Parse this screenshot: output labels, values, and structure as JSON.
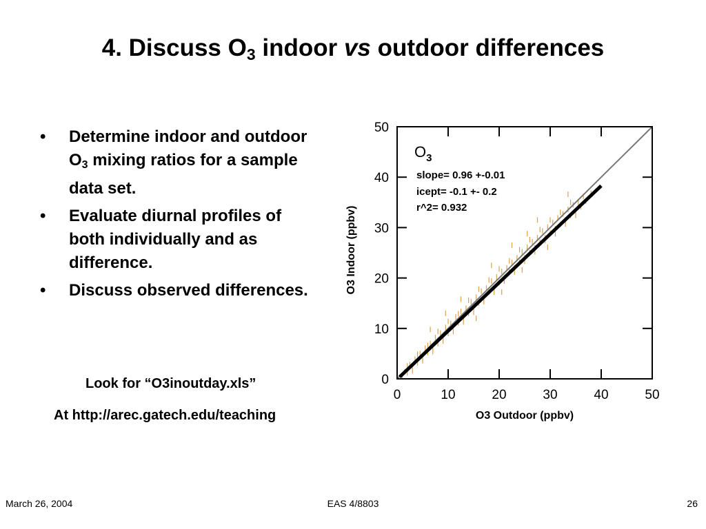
{
  "slide": {
    "title": {
      "pre": "4. Discuss O",
      "sub": "3",
      "mid": " indoor ",
      "em": "vs",
      "post": " outdoor differences"
    },
    "bullet_char": "•",
    "bullets": [
      {
        "pre": "Determine indoor and outdoor O",
        "sub": "3",
        "post": " mixing ratios for a sample data set."
      },
      {
        "pre": "Evaluate diurnal profiles of both individually and as difference.",
        "sub": "",
        "post": ""
      },
      {
        "pre": "Discuss observed differences.",
        "sub": "",
        "post": ""
      }
    ],
    "note_file": "Look for “O3inoutday.xls”",
    "note_url": "At http://arec.gatech.edu/teaching"
  },
  "footer": {
    "date": "March 26, 2004",
    "course": "EAS 4/8803",
    "page": "26"
  },
  "chart_data": {
    "type": "scatter",
    "xlabel": "O3 Outdoor (ppbv)",
    "ylabel": "O3 Indoor (ppbv)",
    "xlim": [
      0,
      50
    ],
    "ylim": [
      0,
      50
    ],
    "xticks": [
      0,
      10,
      20,
      30,
      40,
      50
    ],
    "yticks": [
      0,
      10,
      20,
      30,
      40,
      50
    ],
    "grid": false,
    "annotation": {
      "species": "O",
      "species_sub": "3",
      "slope": "slope= 0.96 +-0.01",
      "icept": "icept=  -0.1 +-  0.2",
      "r2": "r^2=  0.932"
    },
    "fit_line": {
      "slope": 0.96,
      "intercept": -0.1,
      "x_range": [
        0.5,
        40
      ]
    },
    "one_to_one_line": {
      "x_range": [
        0,
        50
      ]
    },
    "point_color": "#d8a050",
    "points": [
      [
        1,
        0.5
      ],
      [
        1.5,
        1.4
      ],
      [
        2,
        1.2
      ],
      [
        2.5,
        2.8
      ],
      [
        3,
        2.4
      ],
      [
        3.5,
        3.9
      ],
      [
        4,
        3.2
      ],
      [
        4.5,
        5.0
      ],
      [
        5,
        4.2
      ],
      [
        5.5,
        6.1
      ],
      [
        6,
        5.2
      ],
      [
        6.5,
        7.0
      ],
      [
        7,
        6.3
      ],
      [
        7.5,
        8.2
      ],
      [
        8,
        7.0
      ],
      [
        8.5,
        9.1
      ],
      [
        9,
        8.1
      ],
      [
        9.5,
        10.2
      ],
      [
        10,
        9.0
      ],
      [
        10.5,
        11.0
      ],
      [
        11,
        10.2
      ],
      [
        11.5,
        12.3
      ],
      [
        12,
        11.1
      ],
      [
        12.5,
        13.4
      ],
      [
        13,
        12.2
      ],
      [
        13.5,
        14.0
      ],
      [
        14,
        13.0
      ],
      [
        14.5,
        15.3
      ],
      [
        15,
        14.1
      ],
      [
        15.5,
        16.2
      ],
      [
        16,
        15.0
      ],
      [
        16.5,
        17.4
      ],
      [
        17,
        16.1
      ],
      [
        17.5,
        18.0
      ],
      [
        18,
        17.2
      ],
      [
        18.5,
        19.4
      ],
      [
        19,
        18.0
      ],
      [
        19.5,
        20.2
      ],
      [
        20,
        19.1
      ],
      [
        20.5,
        21.3
      ],
      [
        21,
        20.0
      ],
      [
        21.5,
        22.0
      ],
      [
        22,
        21.2
      ],
      [
        22.5,
        23.1
      ],
      [
        23,
        22.0
      ],
      [
        23.5,
        24.0
      ],
      [
        24,
        23.1
      ],
      [
        24.5,
        25.2
      ],
      [
        25,
        24.0
      ],
      [
        25.5,
        26.1
      ],
      [
        26,
        25.0
      ],
      [
        26.5,
        27.2
      ],
      [
        27,
        26.0
      ],
      [
        27.5,
        28.0
      ],
      [
        28,
        27.1
      ],
      [
        28.5,
        29.3
      ],
      [
        29,
        28.0
      ],
      [
        29.5,
        30.1
      ],
      [
        30,
        28.9
      ],
      [
        30.5,
        31.0
      ],
      [
        31,
        29.8
      ],
      [
        31.5,
        31.9
      ],
      [
        32,
        30.6
      ],
      [
        32.5,
        32.7
      ],
      [
        33,
        31.5
      ],
      [
        33.5,
        33.6
      ],
      [
        34,
        32.4
      ],
      [
        34.5,
        34.5
      ],
      [
        35,
        33.2
      ],
      [
        35.5,
        35.0
      ],
      [
        36,
        34.1
      ],
      [
        37,
        35.2
      ],
      [
        2,
        2.6
      ],
      [
        4,
        4.9
      ],
      [
        6,
        6.6
      ],
      [
        8,
        9.4
      ],
      [
        10,
        11.4
      ],
      [
        12,
        12.9
      ],
      [
        14,
        15.6
      ],
      [
        16,
        17.8
      ],
      [
        18,
        19.6
      ],
      [
        20,
        21.8
      ],
      [
        22,
        23.4
      ],
      [
        24,
        25.6
      ],
      [
        26,
        27.6
      ],
      [
        28,
        29.6
      ],
      [
        30,
        31.5
      ],
      [
        32,
        33.0
      ],
      [
        34,
        35.0
      ],
      [
        3,
        1.6
      ],
      [
        5,
        3.6
      ],
      [
        7,
        5.4
      ],
      [
        9,
        7.5
      ],
      [
        11,
        9.4
      ],
      [
        13,
        11.3
      ],
      [
        15,
        13.2
      ],
      [
        17,
        15.3
      ],
      [
        19,
        17.2
      ],
      [
        21,
        19.4
      ],
      [
        23,
        21.2
      ],
      [
        25,
        23.3
      ],
      [
        27,
        25.2
      ],
      [
        29,
        27.4
      ],
      [
        31,
        28.8
      ],
      [
        33,
        30.7
      ],
      [
        35,
        32.4
      ],
      [
        36.5,
        36.2
      ],
      [
        12.5,
        15.8
      ],
      [
        18.5,
        22.5
      ],
      [
        22.5,
        26.5
      ],
      [
        25.5,
        28.8
      ],
      [
        27.5,
        31.5
      ],
      [
        15.5,
        12.0
      ],
      [
        20.5,
        17.2
      ],
      [
        24.5,
        21.6
      ],
      [
        29.5,
        26.1
      ],
      [
        6.5,
        9.8
      ],
      [
        9.5,
        13.0
      ],
      [
        38,
        36.8
      ],
      [
        33.5,
        36.6
      ]
    ]
  }
}
